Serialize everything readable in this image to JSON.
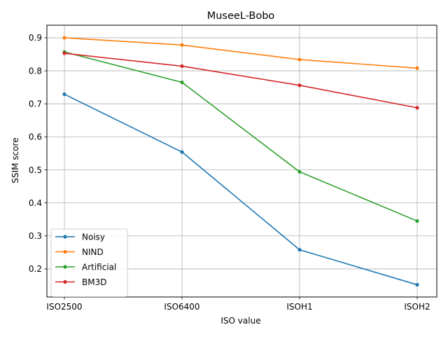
{
  "chart_data": {
    "type": "line",
    "title": "MuseeL-Bobo",
    "xlabel": "ISO value",
    "ylabel": "SSIM score",
    "categories": [
      "ISO2500",
      "ISO6400",
      "ISOH1",
      "ISOH2"
    ],
    "ylim": [
      0.115,
      0.938
    ],
    "yticks": [
      0.2,
      0.3,
      0.4,
      0.5,
      0.6,
      0.7,
      0.8,
      0.9
    ],
    "grid": true,
    "legend_position": "lower-left",
    "series": [
      {
        "name": "Noisy",
        "color": "#1f77b4",
        "values": [
          0.729,
          0.554,
          0.258,
          0.152
        ]
      },
      {
        "name": "NIND",
        "color": "#ff7f0e",
        "values": [
          0.9,
          0.878,
          0.834,
          0.808
        ]
      },
      {
        "name": "Artificial",
        "color": "#2ca02c",
        "values": [
          0.857,
          0.765,
          0.494,
          0.345
        ]
      },
      {
        "name": "BM3D",
        "color": "#d62728",
        "values": [
          0.853,
          0.814,
          0.756,
          0.688
        ]
      }
    ]
  }
}
